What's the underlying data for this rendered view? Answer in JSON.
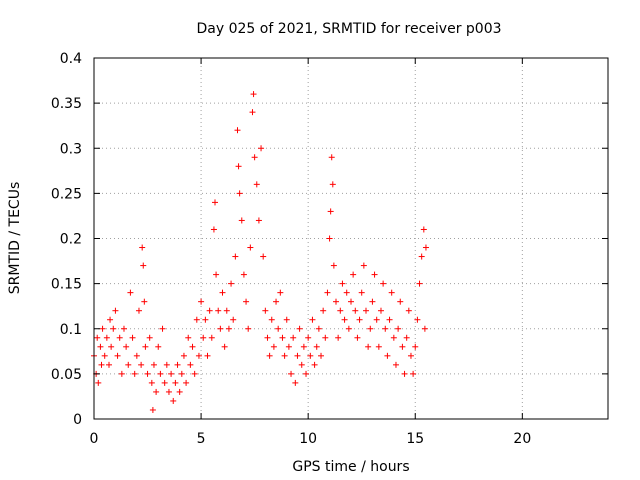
{
  "chart_data": {
    "type": "scatter",
    "title": "Day 025 of 2021, SRMTID for receiver p003",
    "xlabel": "GPS time / hours",
    "ylabel": "SRMTID / TECUs",
    "xlim": [
      0,
      24
    ],
    "ylim": [
      0,
      0.4
    ],
    "xticks": [
      0,
      5,
      10,
      15,
      20
    ],
    "xtick_labels": [
      "0",
      "5",
      "10",
      "15",
      "20"
    ],
    "yticks": [
      0,
      0.05,
      0.1,
      0.15,
      0.2,
      0.25,
      0.3,
      0.35,
      0.4
    ],
    "ytick_labels": [
      "0",
      "0.05",
      "0.1",
      "0.15",
      "0.2",
      "0.25",
      "0.3",
      "0.35",
      "0.4"
    ],
    "grid": true,
    "marker": "+",
    "color": "#ff0000",
    "series": [
      {
        "name": "SRMTID p003",
        "points": [
          [
            0.0,
            0.07
          ],
          [
            0.1,
            0.05
          ],
          [
            0.15,
            0.09
          ],
          [
            0.2,
            0.04
          ],
          [
            0.3,
            0.08
          ],
          [
            0.35,
            0.06
          ],
          [
            0.4,
            0.1
          ],
          [
            0.5,
            0.07
          ],
          [
            0.6,
            0.09
          ],
          [
            0.7,
            0.06
          ],
          [
            0.75,
            0.11
          ],
          [
            0.8,
            0.08
          ],
          [
            0.9,
            0.1
          ],
          [
            1.0,
            0.12
          ],
          [
            1.1,
            0.07
          ],
          [
            1.2,
            0.09
          ],
          [
            1.3,
            0.05
          ],
          [
            1.4,
            0.1
          ],
          [
            1.5,
            0.08
          ],
          [
            1.6,
            0.06
          ],
          [
            1.7,
            0.14
          ],
          [
            1.8,
            0.09
          ],
          [
            1.9,
            0.05
          ],
          [
            2.0,
            0.07
          ],
          [
            2.1,
            0.12
          ],
          [
            2.2,
            0.06
          ],
          [
            2.25,
            0.19
          ],
          [
            2.3,
            0.17
          ],
          [
            2.35,
            0.13
          ],
          [
            2.4,
            0.08
          ],
          [
            2.5,
            0.05
          ],
          [
            2.6,
            0.09
          ],
          [
            2.7,
            0.04
          ],
          [
            2.75,
            0.01
          ],
          [
            2.8,
            0.06
          ],
          [
            2.9,
            0.03
          ],
          [
            3.0,
            0.08
          ],
          [
            3.1,
            0.05
          ],
          [
            3.2,
            0.1
          ],
          [
            3.3,
            0.04
          ],
          [
            3.4,
            0.06
          ],
          [
            3.5,
            0.03
          ],
          [
            3.6,
            0.05
          ],
          [
            3.7,
            0.02
          ],
          [
            3.8,
            0.04
          ],
          [
            3.9,
            0.06
          ],
          [
            4.0,
            0.03
          ],
          [
            4.1,
            0.05
          ],
          [
            4.2,
            0.07
          ],
          [
            4.3,
            0.04
          ],
          [
            4.4,
            0.09
          ],
          [
            4.5,
            0.06
          ],
          [
            4.6,
            0.08
          ],
          [
            4.7,
            0.05
          ],
          [
            4.8,
            0.11
          ],
          [
            4.9,
            0.07
          ],
          [
            5.0,
            0.13
          ],
          [
            5.1,
            0.09
          ],
          [
            5.2,
            0.11
          ],
          [
            5.3,
            0.07
          ],
          [
            5.4,
            0.12
          ],
          [
            5.5,
            0.09
          ],
          [
            5.6,
            0.21
          ],
          [
            5.65,
            0.24
          ],
          [
            5.7,
            0.16
          ],
          [
            5.8,
            0.12
          ],
          [
            5.9,
            0.1
          ],
          [
            6.0,
            0.14
          ],
          [
            6.1,
            0.08
          ],
          [
            6.2,
            0.12
          ],
          [
            6.3,
            0.1
          ],
          [
            6.4,
            0.15
          ],
          [
            6.5,
            0.11
          ],
          [
            6.6,
            0.18
          ],
          [
            6.7,
            0.32
          ],
          [
            6.75,
            0.28
          ],
          [
            6.8,
            0.25
          ],
          [
            6.9,
            0.22
          ],
          [
            7.0,
            0.16
          ],
          [
            7.1,
            0.13
          ],
          [
            7.2,
            0.1
          ],
          [
            7.3,
            0.19
          ],
          [
            7.4,
            0.34
          ],
          [
            7.45,
            0.36
          ],
          [
            7.5,
            0.29
          ],
          [
            7.6,
            0.26
          ],
          [
            7.7,
            0.22
          ],
          [
            7.8,
            0.3
          ],
          [
            7.9,
            0.18
          ],
          [
            8.0,
            0.12
          ],
          [
            8.1,
            0.09
          ],
          [
            8.2,
            0.07
          ],
          [
            8.3,
            0.11
          ],
          [
            8.4,
            0.08
          ],
          [
            8.5,
            0.13
          ],
          [
            8.6,
            0.1
          ],
          [
            8.7,
            0.14
          ],
          [
            8.8,
            0.09
          ],
          [
            8.9,
            0.07
          ],
          [
            9.0,
            0.11
          ],
          [
            9.1,
            0.08
          ],
          [
            9.2,
            0.05
          ],
          [
            9.3,
            0.09
          ],
          [
            9.4,
            0.04
          ],
          [
            9.5,
            0.07
          ],
          [
            9.6,
            0.1
          ],
          [
            9.7,
            0.06
          ],
          [
            9.8,
            0.08
          ],
          [
            9.9,
            0.05
          ],
          [
            10.0,
            0.09
          ],
          [
            10.1,
            0.07
          ],
          [
            10.2,
            0.11
          ],
          [
            10.3,
            0.06
          ],
          [
            10.4,
            0.08
          ],
          [
            10.5,
            0.1
          ],
          [
            10.6,
            0.07
          ],
          [
            10.7,
            0.12
          ],
          [
            10.8,
            0.09
          ],
          [
            10.9,
            0.14
          ],
          [
            11.0,
            0.2
          ],
          [
            11.05,
            0.23
          ],
          [
            11.1,
            0.29
          ],
          [
            11.15,
            0.26
          ],
          [
            11.2,
            0.17
          ],
          [
            11.3,
            0.13
          ],
          [
            11.4,
            0.09
          ],
          [
            11.5,
            0.12
          ],
          [
            11.6,
            0.15
          ],
          [
            11.7,
            0.11
          ],
          [
            11.8,
            0.14
          ],
          [
            11.9,
            0.1
          ],
          [
            12.0,
            0.13
          ],
          [
            12.1,
            0.16
          ],
          [
            12.2,
            0.12
          ],
          [
            12.3,
            0.09
          ],
          [
            12.4,
            0.11
          ],
          [
            12.5,
            0.14
          ],
          [
            12.6,
            0.17
          ],
          [
            12.7,
            0.12
          ],
          [
            12.8,
            0.08
          ],
          [
            12.9,
            0.1
          ],
          [
            13.0,
            0.13
          ],
          [
            13.1,
            0.16
          ],
          [
            13.2,
            0.11
          ],
          [
            13.3,
            0.08
          ],
          [
            13.4,
            0.12
          ],
          [
            13.5,
            0.15
          ],
          [
            13.6,
            0.1
          ],
          [
            13.7,
            0.07
          ],
          [
            13.8,
            0.11
          ],
          [
            13.9,
            0.14
          ],
          [
            14.0,
            0.09
          ],
          [
            14.1,
            0.06
          ],
          [
            14.2,
            0.1
          ],
          [
            14.3,
            0.13
          ],
          [
            14.4,
            0.08
          ],
          [
            14.5,
            0.05
          ],
          [
            14.6,
            0.09
          ],
          [
            14.7,
            0.12
          ],
          [
            14.8,
            0.07
          ],
          [
            14.9,
            0.05
          ],
          [
            15.0,
            0.08
          ],
          [
            15.1,
            0.11
          ],
          [
            15.2,
            0.15
          ],
          [
            15.3,
            0.18
          ],
          [
            15.4,
            0.21
          ],
          [
            15.5,
            0.19
          ],
          [
            15.45,
            0.1
          ]
        ]
      }
    ]
  }
}
